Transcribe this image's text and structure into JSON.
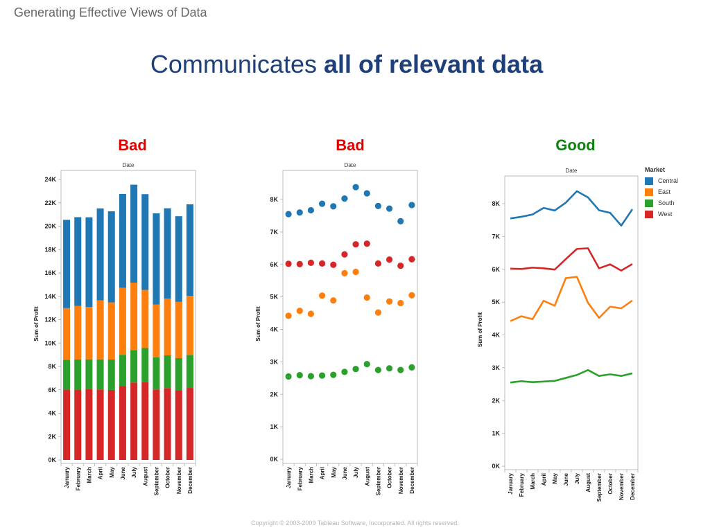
{
  "header": {
    "text": "Generating Effective Views of Data"
  },
  "title": {
    "regular": "Communicates ",
    "bold": "all of relevant data"
  },
  "verdicts": [
    {
      "label": "Bad",
      "color": "#e00000"
    },
    {
      "label": "Bad",
      "color": "#e00000"
    },
    {
      "label": "Good",
      "color": "#108010"
    }
  ],
  "footer": {
    "text": "Copyright © 2003-2009 Tableau Software, Incorporated.   All rights reserved."
  },
  "colors": {
    "Central": "#1f77b4",
    "East": "#ff7f0e",
    "South": "#2ca02c",
    "West": "#d62728",
    "axis": "#bbbbbb"
  },
  "legend": {
    "title": "Market",
    "items": [
      "Central",
      "East",
      "South",
      "West"
    ]
  },
  "chart_data": [
    {
      "type": "bar",
      "stacked": true,
      "title": "Date",
      "xlabel": "",
      "ylabel": "Sum of Profit",
      "ylim": [
        0,
        24000
      ],
      "yticks": [
        0,
        2000,
        4000,
        6000,
        8000,
        10000,
        12000,
        14000,
        16000,
        18000,
        20000,
        22000,
        24000
      ],
      "ytick_labels": [
        "0K",
        "2K",
        "4K",
        "6K",
        "8K",
        "10K",
        "12K",
        "14K",
        "16K",
        "18K",
        "20K",
        "22K",
        "24K"
      ],
      "categories": [
        "January",
        "February",
        "March",
        "April",
        "May",
        "June",
        "July",
        "August",
        "September",
        "October",
        "November",
        "December"
      ],
      "stack_order": [
        "West",
        "South",
        "East",
        "Central"
      ],
      "series": [
        {
          "name": "West",
          "values": [
            6020,
            6010,
            6050,
            6030,
            5990,
            6310,
            6620,
            6640,
            6030,
            6150,
            5960,
            6160
          ]
        },
        {
          "name": "South",
          "values": [
            2550,
            2590,
            2560,
            2580,
            2600,
            2690,
            2780,
            2930,
            2750,
            2800,
            2750,
            2830
          ]
        },
        {
          "name": "East",
          "values": [
            4420,
            4570,
            4480,
            5040,
            4890,
            5730,
            5770,
            4980,
            4520,
            4860,
            4810,
            5050
          ]
        },
        {
          "name": "Central",
          "values": [
            7550,
            7600,
            7670,
            7870,
            7790,
            8030,
            8380,
            8190,
            7800,
            7720,
            7330,
            7830
          ]
        }
      ],
      "legend": "none",
      "grid": false
    },
    {
      "type": "scatter",
      "title": "Date",
      "xlabel": "",
      "ylabel": "Sum of Profit",
      "ylim": [
        0,
        8800
      ],
      "yticks": [
        0,
        1000,
        2000,
        3000,
        4000,
        5000,
        6000,
        7000,
        8000
      ],
      "ytick_labels": [
        "0K",
        "1K",
        "2K",
        "3K",
        "4K",
        "5K",
        "6K",
        "7K",
        "8K"
      ],
      "categories": [
        "January",
        "February",
        "March",
        "April",
        "May",
        "June",
        "July",
        "August",
        "September",
        "October",
        "November",
        "December"
      ],
      "series": [
        {
          "name": "Central",
          "values": [
            7550,
            7600,
            7670,
            7870,
            7790,
            8030,
            8380,
            8190,
            7800,
            7720,
            7330,
            7830
          ]
        },
        {
          "name": "East",
          "values": [
            4420,
            4570,
            4480,
            5040,
            4890,
            5730,
            5770,
            4980,
            4520,
            4860,
            4810,
            5050
          ]
        },
        {
          "name": "South",
          "values": [
            2550,
            2590,
            2560,
            2580,
            2600,
            2690,
            2780,
            2930,
            2750,
            2800,
            2750,
            2830
          ]
        },
        {
          "name": "West",
          "values": [
            6020,
            6010,
            6050,
            6030,
            5990,
            6310,
            6620,
            6640,
            6030,
            6150,
            5960,
            6160
          ]
        }
      ],
      "legend": "none",
      "grid": false
    },
    {
      "type": "line",
      "title": "Date",
      "xlabel": "",
      "ylabel": "Sum of Profit",
      "ylim": [
        0,
        8800
      ],
      "yticks": [
        0,
        1000,
        2000,
        3000,
        4000,
        5000,
        6000,
        7000,
        8000
      ],
      "ytick_labels": [
        "0K",
        "1K",
        "2K",
        "3K",
        "4K",
        "5K",
        "6K",
        "7K",
        "8K"
      ],
      "categories": [
        "January",
        "February",
        "March",
        "April",
        "May",
        "June",
        "July",
        "August",
        "September",
        "October",
        "November",
        "December"
      ],
      "series": [
        {
          "name": "Central",
          "values": [
            7550,
            7600,
            7670,
            7870,
            7790,
            8030,
            8380,
            8190,
            7800,
            7720,
            7330,
            7830
          ]
        },
        {
          "name": "East",
          "values": [
            4420,
            4570,
            4480,
            5040,
            4890,
            5730,
            5770,
            4980,
            4520,
            4860,
            4810,
            5050
          ]
        },
        {
          "name": "South",
          "values": [
            2550,
            2590,
            2560,
            2580,
            2600,
            2690,
            2780,
            2930,
            2750,
            2800,
            2750,
            2830
          ]
        },
        {
          "name": "West",
          "values": [
            6020,
            6010,
            6050,
            6030,
            5990,
            6310,
            6620,
            6640,
            6030,
            6150,
            5960,
            6160
          ]
        }
      ],
      "legend": "right",
      "legend_title": "Market",
      "grid": false
    }
  ]
}
